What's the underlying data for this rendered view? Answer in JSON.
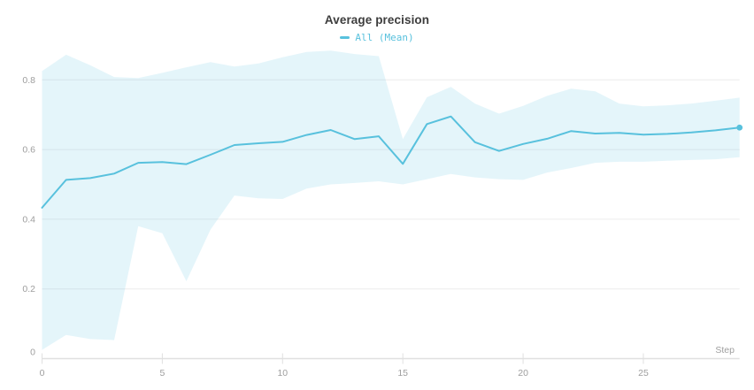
{
  "page": {
    "background": "#ffffff"
  },
  "header": {
    "title": "Average precision"
  },
  "legend": {
    "items": [
      {
        "label": "All (Mean)",
        "color": "#58c1dd"
      }
    ]
  },
  "chart_data": {
    "type": "line",
    "title": "Average precision",
    "xlabel": "Step",
    "ylabel": "",
    "grid": "horizontal",
    "legend_position": "top-center",
    "x": [
      0,
      1,
      2,
      3,
      4,
      5,
      6,
      7,
      8,
      9,
      10,
      11,
      12,
      13,
      14,
      15,
      16,
      17,
      18,
      19,
      20,
      21,
      22,
      23,
      24,
      25,
      26,
      27,
      28,
      29
    ],
    "series": [
      {
        "name": "All (Mean)",
        "color": "#58c1dd",
        "values": [
          0.433,
          0.513,
          0.518,
          0.531,
          0.562,
          0.564,
          0.558,
          0.585,
          0.613,
          0.618,
          0.622,
          0.642,
          0.656,
          0.63,
          0.638,
          0.559,
          0.673,
          0.695,
          0.621,
          0.596,
          0.616,
          0.631,
          0.653,
          0.646,
          0.648,
          0.643,
          0.645,
          0.649,
          0.655,
          0.663
        ]
      }
    ],
    "confidence_band": {
      "series": "All",
      "fill": "#58c1dd",
      "fill_opacity": 0.16,
      "upper": [
        0.825,
        0.872,
        0.842,
        0.808,
        0.805,
        0.82,
        0.836,
        0.851,
        0.838,
        0.847,
        0.865,
        0.88,
        0.884,
        0.874,
        0.868,
        0.63,
        0.75,
        0.78,
        0.732,
        0.703,
        0.725,
        0.754,
        0.775,
        0.767,
        0.732,
        0.724,
        0.727,
        0.732,
        0.74,
        0.749
      ],
      "lower": [
        0.025,
        0.068,
        0.056,
        0.053,
        0.38,
        0.36,
        0.222,
        0.37,
        0.468,
        0.46,
        0.458,
        0.488,
        0.5,
        0.504,
        0.509,
        0.5,
        0.515,
        0.53,
        0.52,
        0.515,
        0.513,
        0.534,
        0.547,
        0.562,
        0.565,
        0.565,
        0.568,
        0.57,
        0.572,
        0.578
      ]
    },
    "xticks": [
      0,
      5,
      10,
      15,
      20,
      25
    ],
    "yticks": [
      0,
      0.2,
      0.4,
      0.6,
      0.8
    ],
    "xlim": [
      0,
      29
    ],
    "ylim": [
      0,
      0.9
    ],
    "end_marker": true,
    "colors": {
      "line": "#58c1dd",
      "grid": "#ececec",
      "axis": "#e0e0e0",
      "tick_label": "#9e9e9e"
    }
  }
}
